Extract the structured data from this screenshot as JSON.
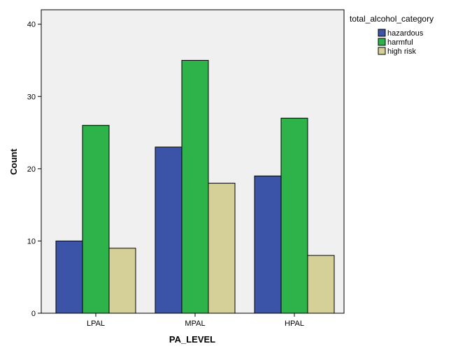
{
  "chart_data": {
    "type": "bar",
    "title": "",
    "xlabel": "PA_LEVEL",
    "ylabel": "Count",
    "categories": [
      "LPAL",
      "MPAL",
      "HPAL"
    ],
    "series": [
      {
        "name": "hazardous",
        "values": [
          10,
          23,
          19
        ],
        "color": "#3b54a8"
      },
      {
        "name": "harmful",
        "values": [
          26,
          35,
          27
        ],
        "color": "#2eb34a"
      },
      {
        "name": "high risk",
        "values": [
          9,
          18,
          8
        ],
        "color": "#d5cf98"
      }
    ],
    "ylim": [
      0,
      42
    ],
    "yticks": [
      0,
      10,
      20,
      30,
      40
    ],
    "legend": {
      "title": "total_alcohol_category",
      "placement": "right-top"
    },
    "grid": false,
    "plot_background": "#f0f0f0"
  }
}
